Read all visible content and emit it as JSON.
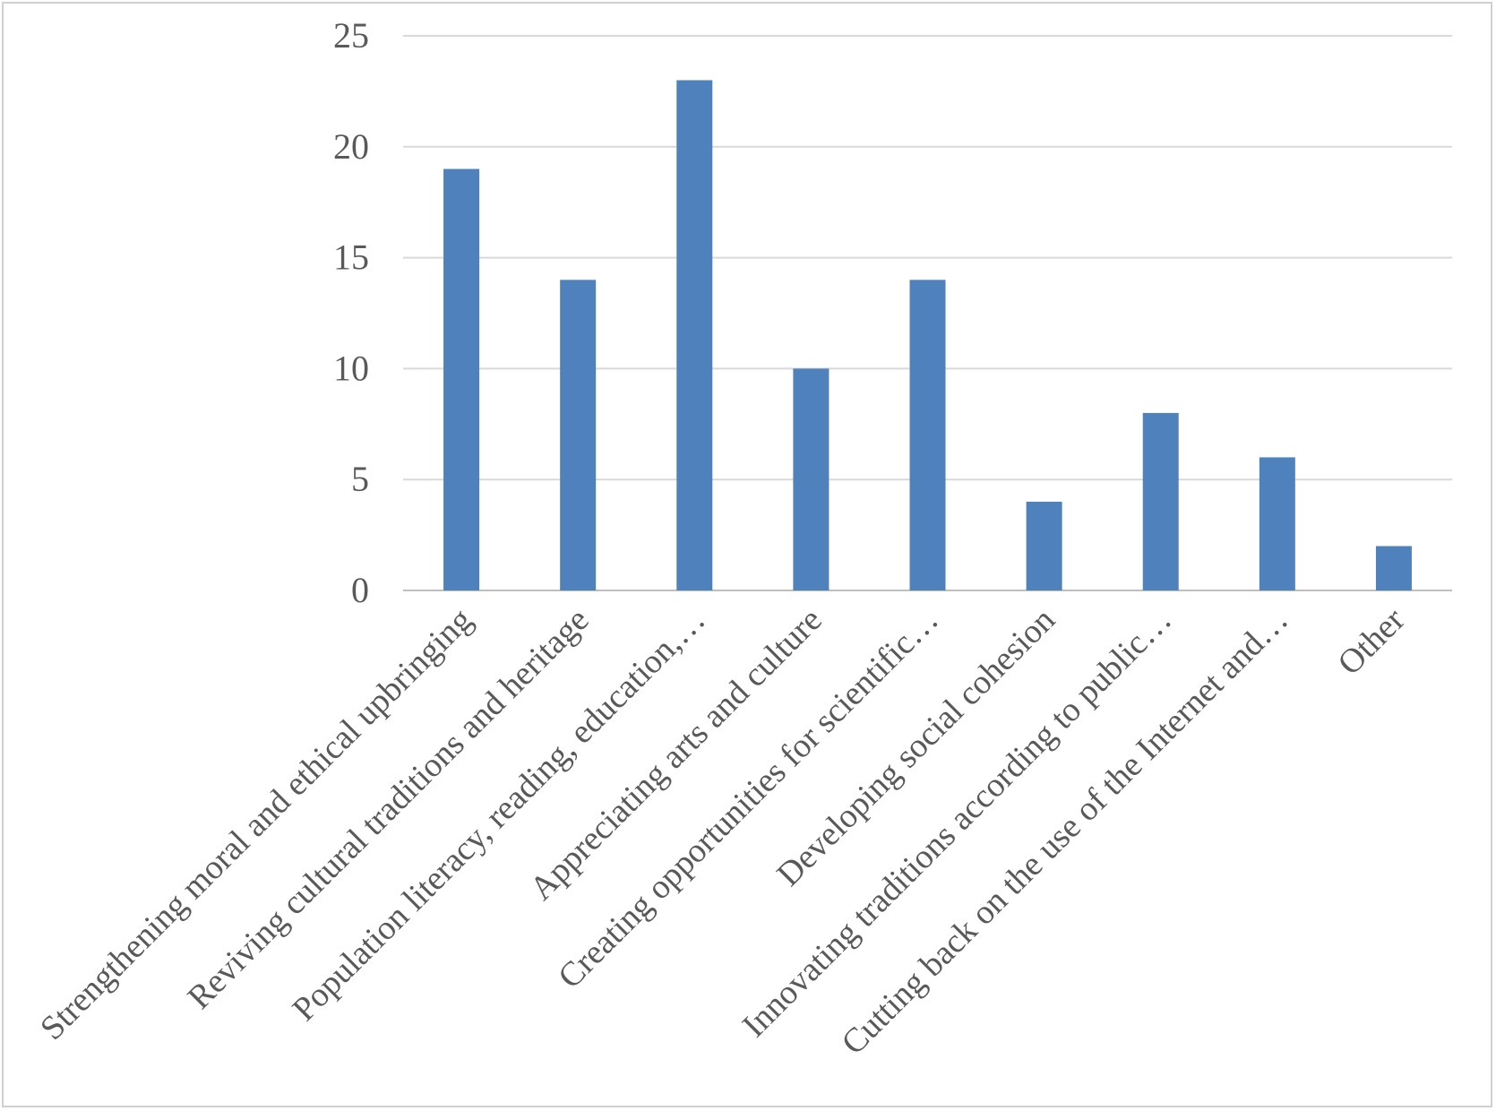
{
  "chart_data": {
    "type": "bar",
    "title": "",
    "xlabel": "",
    "ylabel": "",
    "categories": [
      "Strengthening moral and ethical upbringing",
      "Reviving cultural traditions and heritage",
      "Population literacy, reading, education,…",
      "Appreciating arts and culture",
      "Creating opportunities for scientific…",
      "Developing social cohesion",
      "Innovating traditions according to public…",
      "Cutting back on the use of the Internet and…",
      "Other"
    ],
    "values": [
      19,
      14,
      23,
      10,
      14,
      4,
      8,
      6,
      2
    ],
    "ylim": [
      0,
      25
    ],
    "yticks": [
      "0",
      "5",
      "10",
      "15",
      "20",
      "25"
    ],
    "grid": true,
    "legend": "none",
    "colors": {
      "bar": "#4F81BD",
      "grid": "#D9D9D9",
      "axis": "#BFBFBF",
      "text": "#595959"
    }
  }
}
